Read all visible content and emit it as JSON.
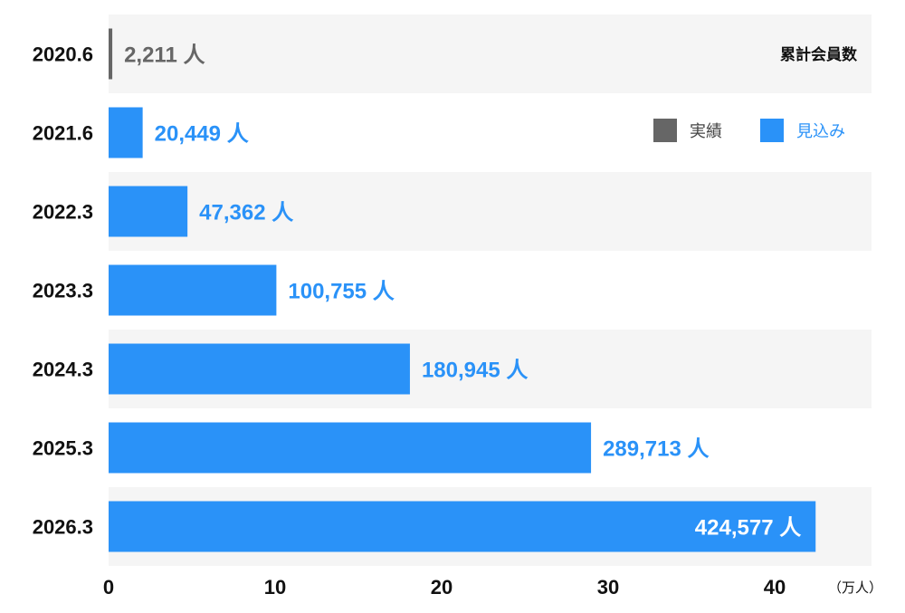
{
  "chart_data": {
    "type": "bar",
    "orientation": "horizontal",
    "title": "累計会員数",
    "categories": [
      "2020.6",
      "2021.6",
      "2022.3",
      "2023.3",
      "2024.3",
      "2025.3",
      "2026.3"
    ],
    "values": [
      2211,
      20449,
      47362,
      100755,
      180945,
      289713,
      424577
    ],
    "value_labels": [
      "2,211 人",
      "20,449 人",
      "47,362 人",
      "100,755 人",
      "180,945 人",
      "289,713 人",
      "424,577 人"
    ],
    "value_kind": [
      "実績",
      "見込み",
      "見込み",
      "見込み",
      "見込み",
      "見込み",
      "見込み"
    ],
    "x_unit_divisor": 10000,
    "xlim": [
      0,
      45
    ],
    "x_ticks": [
      0,
      10,
      20,
      30,
      40
    ],
    "x_unit_label": "（万人）",
    "legend": [
      {
        "name": "実績",
        "color": "#666666"
      },
      {
        "name": "見込み",
        "color": "#2a92f8"
      }
    ],
    "legend_position": "top-right",
    "grid": false,
    "row_banding": true
  },
  "colors": {
    "actual": "#666666",
    "forecast": "#2a92f8",
    "band": "#f5f5f5",
    "text": "#111111",
    "label_on_bar": "#ffffff"
  }
}
